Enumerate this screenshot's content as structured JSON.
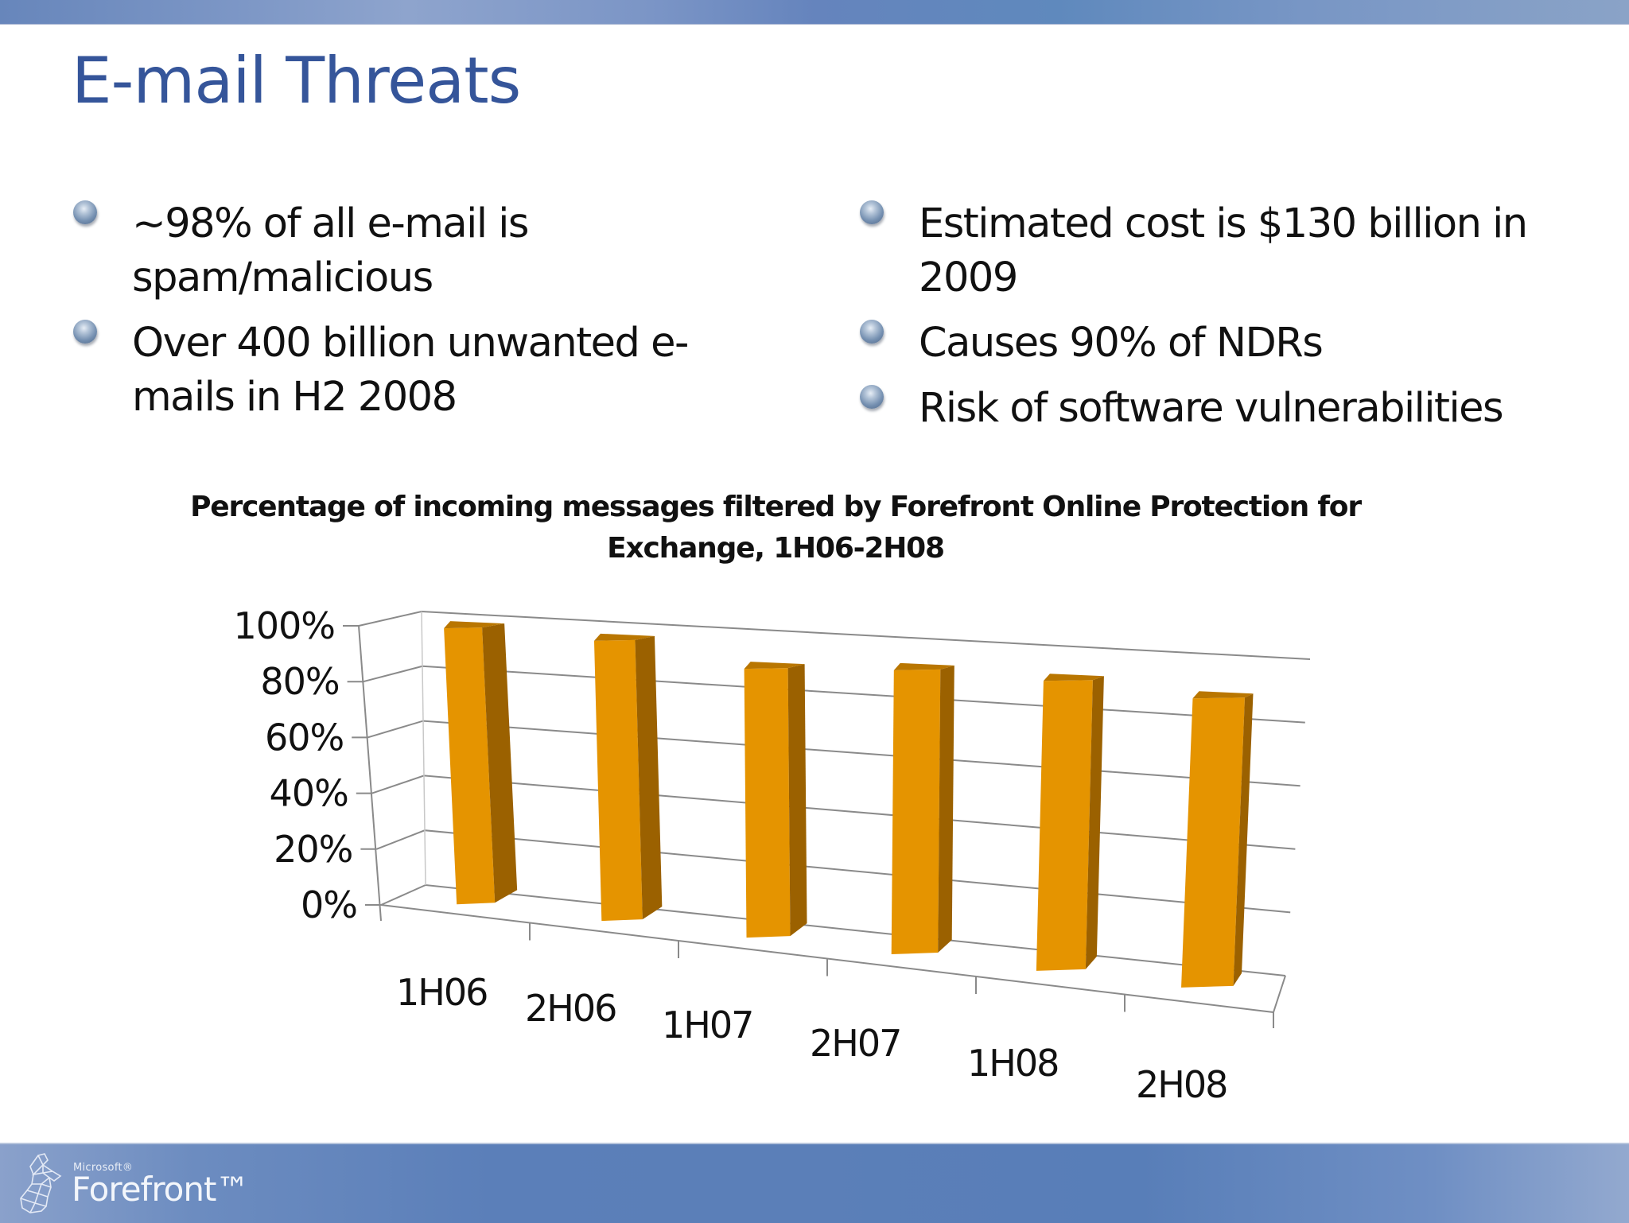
{
  "slide": {
    "title": "E-mail Threats",
    "bullets_left": [
      "~98% of all e-mail is spam/malicious",
      "Over 400 billion unwanted e-mails in H2 2008"
    ],
    "bullets_right": [
      "Estimated cost is $130 billion in 2009",
      "Causes 90% of NDRs",
      "Risk of software vulnerabilities"
    ],
    "footer": {
      "brand_small": "Microsoft®",
      "brand": "Forefront™"
    }
  },
  "colors": {
    "title": "#35559a",
    "bar_front": "#e59400",
    "bar_side": "#9b6100",
    "bar_top": "#b97600",
    "gridline": "#8a8a8a"
  },
  "chart_data": {
    "type": "bar",
    "title": "Percentage of incoming messages filtered by Forefront Online Protection for Exchange, 1H06-2H08",
    "xlabel": "",
    "ylabel": "",
    "categories": [
      "1H06",
      "2H06",
      "1H07",
      "2H07",
      "1H08",
      "2H08"
    ],
    "values": [
      98,
      96,
      89,
      91,
      90,
      87
    ],
    "yticks": [
      "0%",
      "20%",
      "40%",
      "60%",
      "80%",
      "100%"
    ],
    "ylim": [
      0,
      100
    ],
    "grid": true,
    "legend": "none",
    "style": "3d-column"
  }
}
